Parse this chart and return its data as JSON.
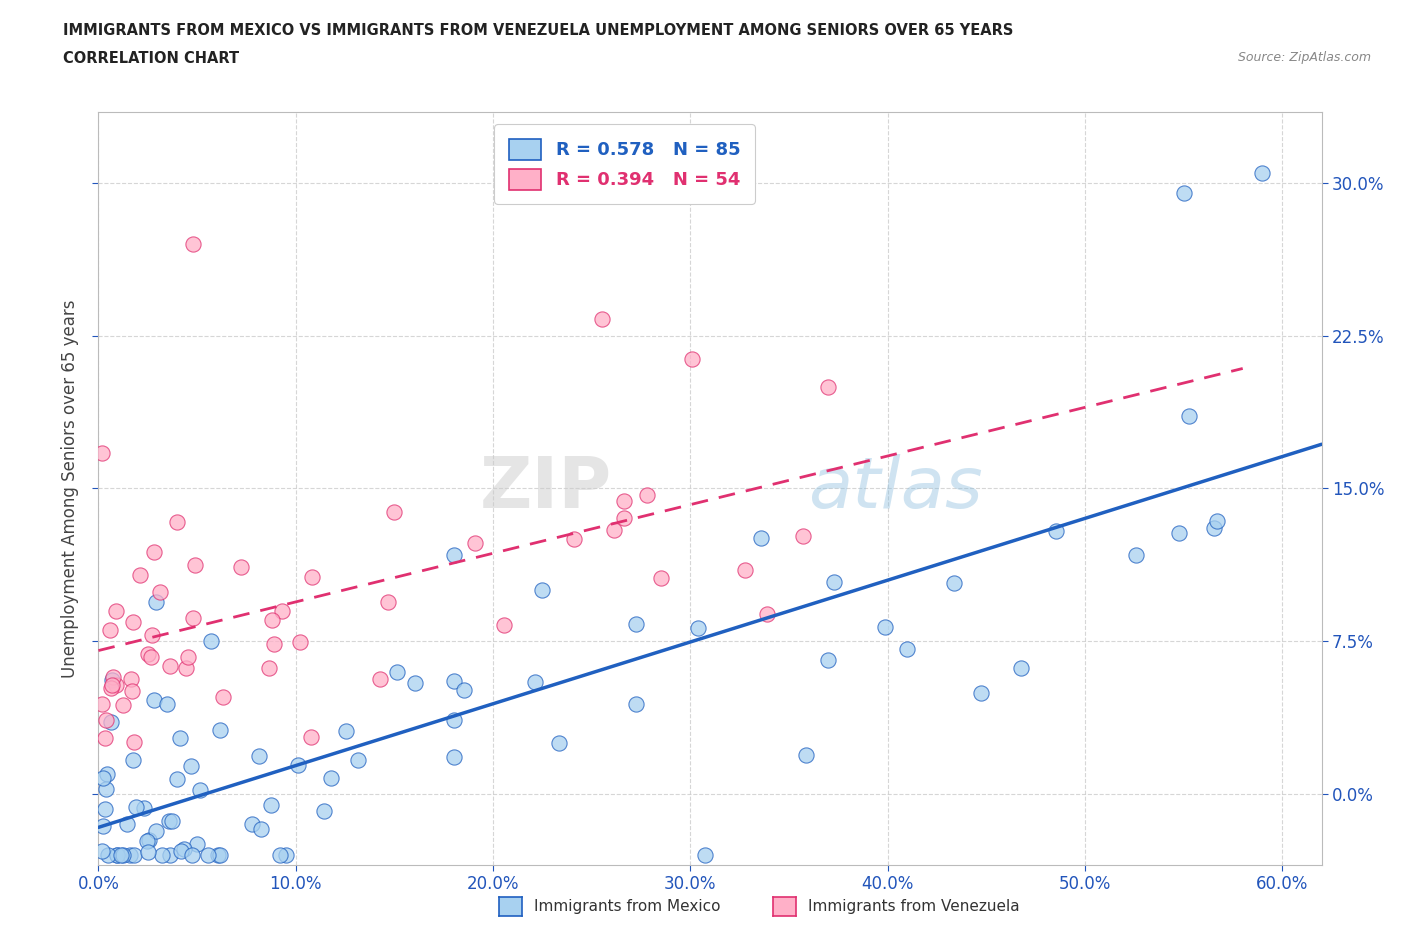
{
  "title_line1": "IMMIGRANTS FROM MEXICO VS IMMIGRANTS FROM VENEZUELA UNEMPLOYMENT AMONG SENIORS OVER 65 YEARS",
  "title_line2": "CORRELATION CHART",
  "source_text": "Source: ZipAtlas.com",
  "xlim": [
    0.0,
    0.62
  ],
  "ylim": [
    -0.035,
    0.335
  ],
  "ylabel": "Unemployment Among Seniors over 65 years",
  "mexico_color": "#a8d1f0",
  "mexico_edge": "#2060c0",
  "venezuela_color": "#ffb0c8",
  "venezuela_edge": "#e03070",
  "mexico_R": 0.578,
  "mexico_N": 85,
  "venezuela_R": 0.394,
  "venezuela_N": 54,
  "background_color": "#ffffff",
  "grid_color": "#cccccc",
  "watermark_zip": "ZIP",
  "watermark_atlas": "atlas",
  "legend_label_mexico": "Immigrants from Mexico",
  "legend_label_venezuela": "Immigrants from Venezuela",
  "mexico_line_x": [
    0.0,
    0.62
  ],
  "mexico_line_y": [
    -0.025,
    0.155
  ],
  "venezuela_line_x": [
    0.0,
    0.58
  ],
  "venezuela_line_y": [
    0.055,
    0.215
  ]
}
